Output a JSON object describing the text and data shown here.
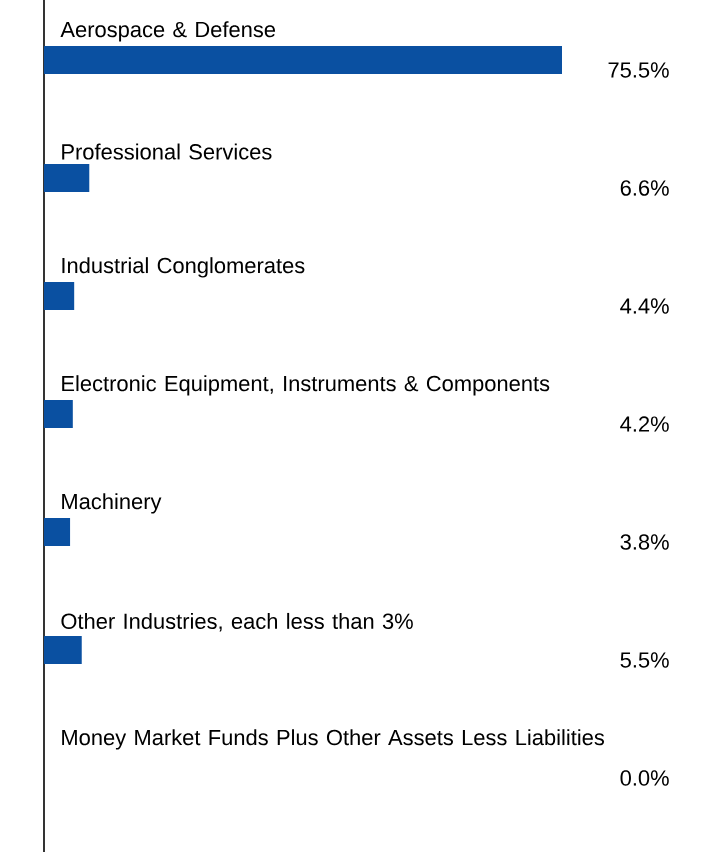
{
  "chart_data": {
    "type": "bar",
    "orientation": "horizontal",
    "categories": [
      "Aerospace & Defense",
      "Professional Services",
      "Industrial Conglomerates",
      "Electronic Equipment, Instruments & Components",
      "Machinery",
      "Other Industries, each less than 3%",
      "Money Market Funds Plus Other Assets Less Liabilities"
    ],
    "values": [
      75.5,
      6.6,
      4.4,
      4.2,
      3.8,
      5.5,
      0.0
    ],
    "value_labels": [
      "75.5%",
      "6.6%",
      "4.4%",
      "4.2%",
      "3.8%",
      "5.5%",
      "0.0%"
    ],
    "color": "#0a50a1"
  }
}
